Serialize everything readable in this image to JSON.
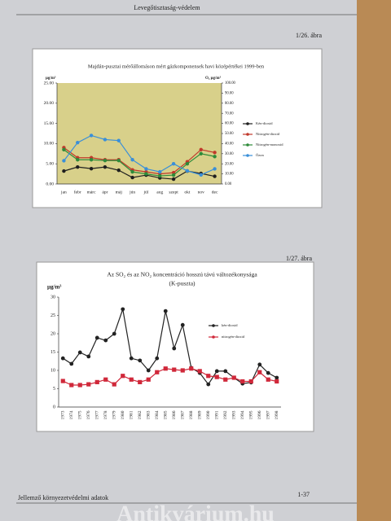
{
  "header": {
    "title": "Levegőtisztaság-védelem"
  },
  "figures": [
    "1/26. ábra",
    "1/27. ábra"
  ],
  "footer": {
    "text": "Jellemző környezetvédelmi adatok",
    "page": "1-37"
  },
  "watermark": "Antikvárium.hu",
  "chart_data": [
    {
      "type": "line",
      "title": "Majdán-pusztai mérőállomáson mért gázkomponensek havi középértékei 1999-ben",
      "y_label": "µg/m³",
      "y2_label": "O₃ µg/m³",
      "x": [
        "jan",
        "febr",
        "márc",
        "ápr",
        "máj",
        "jún",
        "júl",
        "aug",
        "szept",
        "okt",
        "nov",
        "dec"
      ],
      "ylim": [
        0,
        25
      ],
      "yticks": [
        {
          "value": 0,
          "label": "0.00"
        },
        {
          "value": 5,
          "label": "5.00"
        },
        {
          "value": 10,
          "label": "10.00"
        },
        {
          "value": 15,
          "label": "15.00"
        },
        {
          "value": 20,
          "label": "20.00"
        },
        {
          "value": 25,
          "label": "25.00"
        }
      ],
      "y2lim": [
        0,
        100
      ],
      "y2ticks": [
        {
          "value": 0,
          "label": "0.00"
        },
        {
          "value": 10,
          "label": "10.00"
        },
        {
          "value": 20,
          "label": "20.00"
        },
        {
          "value": 30,
          "label": "30.00"
        },
        {
          "value": 40,
          "label": "40.00"
        },
        {
          "value": 50,
          "label": "50.00"
        },
        {
          "value": 60,
          "label": "60.00"
        },
        {
          "value": 70,
          "label": "70.00"
        },
        {
          "value": 80,
          "label": "80.00"
        },
        {
          "value": 90,
          "label": "90.00"
        },
        {
          "value": 100,
          "label": "100.00"
        }
      ],
      "grid": false,
      "series": [
        {
          "name": "Kén-dioxid",
          "color": "#1f1f1f",
          "values": [
            3.2,
            4.2,
            3.8,
            4.2,
            3.4,
            1.6,
            2.2,
            1.5,
            1.2,
            3.2,
            2.6,
            1.9
          ]
        },
        {
          "name": "Nitrogén-dioxid",
          "color": "#c0392b",
          "values": [
            9.0,
            6.5,
            6.5,
            6.0,
            6.0,
            3.5,
            3.0,
            2.5,
            2.8,
            5.5,
            8.5,
            7.8
          ]
        },
        {
          "name": "Nitrogén-monoxid",
          "color": "#2e8b3a",
          "values": [
            8.5,
            6.0,
            6.0,
            5.8,
            5.8,
            3.0,
            2.5,
            2.0,
            2.2,
            5.0,
            7.5,
            6.8
          ]
        },
        {
          "name": "Ózon",
          "color": "#3a8fd8",
          "axis": "y2",
          "values": [
            23,
            41,
            48,
            44,
            43,
            24,
            15,
            12,
            20,
            13,
            9,
            15
          ]
        }
      ]
    },
    {
      "type": "line",
      "title": "Az SO₂ és az NO₂ koncentráció hosszú távú változékonysága",
      "subtitle": "(K-puszta)",
      "y_label": "µg/m³",
      "x": [
        "1973",
        "1974",
        "1975",
        "1976",
        "1977",
        "1978",
        "1979",
        "1980",
        "1981",
        "1982",
        "1983",
        "1984",
        "1985",
        "1986",
        "1987",
        "1988",
        "1989",
        "1990",
        "1991",
        "1992",
        "1993",
        "1994",
        "1995",
        "1996",
        "1997",
        "1998"
      ],
      "ylim": [
        0,
        30
      ],
      "yticks": [
        0,
        5,
        10,
        15,
        20,
        25,
        30
      ],
      "grid": false,
      "series": [
        {
          "name": "kén-dioxid",
          "color": "#222222",
          "values": [
            13.3,
            11.8,
            14.9,
            13.8,
            18.9,
            18.2,
            20,
            26.7,
            13.3,
            12.7,
            10,
            13.3,
            26.2,
            16,
            22.4,
            10.7,
            9.3,
            6.2,
            9.8,
            9.8,
            8,
            6.4,
            6.7,
            11.6,
            9.3,
            8
          ]
        },
        {
          "name": "nitrogén-dioxid",
          "color": "#d0283a",
          "values": [
            7.1,
            6.0,
            6.0,
            6.2,
            6.8,
            7.5,
            6.2,
            8.5,
            7.5,
            6.8,
            7.5,
            9.5,
            10.5,
            10.2,
            10.0,
            10.5,
            9.8,
            8.5,
            8.2,
            7.5,
            8.0,
            7.0,
            7.0,
            9.5,
            7.5,
            7.0
          ]
        }
      ]
    }
  ]
}
